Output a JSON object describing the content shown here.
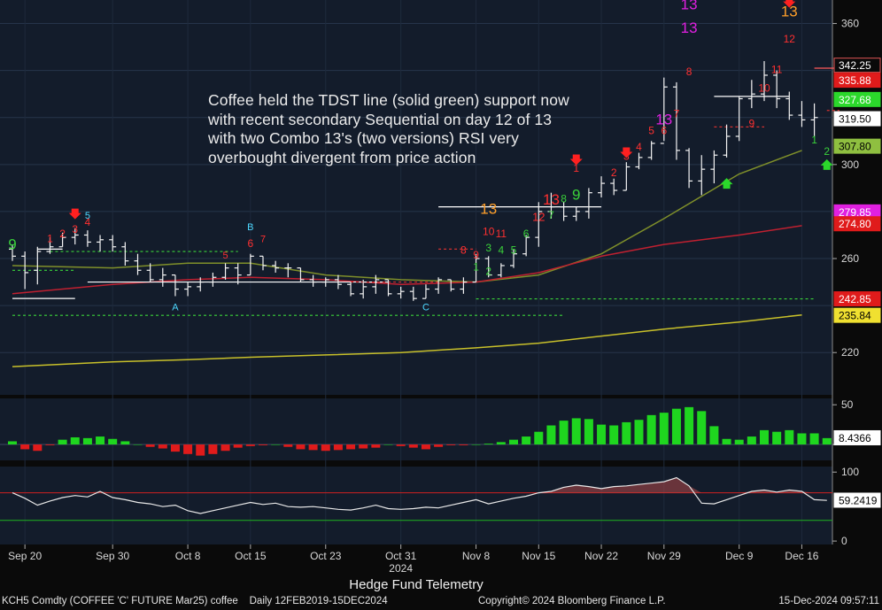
{
  "chart_data": {
    "type": "ohlc-multi-panel",
    "instrument": "KCH5 Comdty (COFFEE 'C' FUTURE Mar25) coffee",
    "period": "Daily 12FEB2019-15DEC2024",
    "title": "Hedge Fund Telemetry",
    "copyright": "Copyright© 2024 Bloomberg Finance L.P.",
    "timestamp": "15-Dec-2024 09:57:11",
    "year_label": "2024",
    "x_ticks": [
      "Sep 20",
      "Sep 30",
      "Oct 8",
      "Oct 15",
      "Oct 23",
      "Oct 31",
      "Nov 8",
      "Nov 15",
      "Nov 22",
      "Nov 29",
      "Dec 9",
      "Dec 16"
    ],
    "x_tick_index": [
      1,
      8,
      14,
      19,
      25,
      31,
      37,
      42,
      47,
      52,
      58,
      63
    ],
    "price_axis": {
      "ylim": [
        202,
        370
      ],
      "ticks": [
        220,
        260,
        300,
        360
      ]
    },
    "price_bars": [
      {
        "o": 264,
        "h": 266,
        "l": 259,
        "c": 261
      },
      {
        "o": 261,
        "h": 263,
        "l": 247,
        "c": 254
      },
      {
        "o": 255,
        "h": 265,
        "l": 249,
        "c": 263
      },
      {
        "o": 263,
        "h": 269,
        "l": 262,
        "c": 265
      },
      {
        "o": 265,
        "h": 271,
        "l": 265,
        "c": 269
      },
      {
        "o": 269,
        "h": 273,
        "l": 266,
        "c": 270
      },
      {
        "o": 270,
        "h": 272,
        "l": 265,
        "c": 267
      },
      {
        "o": 267,
        "h": 270,
        "l": 263,
        "c": 268
      },
      {
        "o": 268,
        "h": 270,
        "l": 263,
        "c": 265
      },
      {
        "o": 265,
        "h": 267,
        "l": 257,
        "c": 259
      },
      {
        "o": 259,
        "h": 262,
        "l": 253,
        "c": 255
      },
      {
        "o": 255,
        "h": 258,
        "l": 250,
        "c": 251
      },
      {
        "o": 251,
        "h": 256,
        "l": 248,
        "c": 253
      },
      {
        "o": 253,
        "h": 253,
        "l": 244,
        "c": 247
      },
      {
        "o": 247,
        "h": 250,
        "l": 244,
        "c": 248
      },
      {
        "o": 248,
        "h": 252,
        "l": 246,
        "c": 250
      },
      {
        "o": 250,
        "h": 254,
        "l": 248,
        "c": 252
      },
      {
        "o": 252,
        "h": 258,
        "l": 251,
        "c": 256
      },
      {
        "o": 256,
        "h": 258,
        "l": 249,
        "c": 253
      },
      {
        "o": 253,
        "h": 262,
        "l": 253,
        "c": 261
      },
      {
        "o": 261,
        "h": 261,
        "l": 255,
        "c": 257
      },
      {
        "o": 257,
        "h": 259,
        "l": 254,
        "c": 256
      },
      {
        "o": 256,
        "h": 258,
        "l": 252,
        "c": 256
      },
      {
        "o": 256,
        "h": 256,
        "l": 250,
        "c": 251
      },
      {
        "o": 251,
        "h": 253,
        "l": 248,
        "c": 250
      },
      {
        "o": 250,
        "h": 252,
        "l": 248,
        "c": 251
      },
      {
        "o": 251,
        "h": 253,
        "l": 247,
        "c": 249
      },
      {
        "o": 249,
        "h": 250,
        "l": 244,
        "c": 245
      },
      {
        "o": 245,
        "h": 251,
        "l": 243,
        "c": 248
      },
      {
        "o": 248,
        "h": 253,
        "l": 245,
        "c": 251
      },
      {
        "o": 251,
        "h": 251,
        "l": 244,
        "c": 245
      },
      {
        "o": 245,
        "h": 248,
        "l": 243,
        "c": 246
      },
      {
        "o": 246,
        "h": 248,
        "l": 242,
        "c": 243
      },
      {
        "o": 243,
        "h": 249,
        "l": 243,
        "c": 247
      },
      {
        "o": 247,
        "h": 252,
        "l": 245,
        "c": 251
      },
      {
        "o": 251,
        "h": 251,
        "l": 246,
        "c": 247
      },
      {
        "o": 247,
        "h": 252,
        "l": 245,
        "c": 250
      },
      {
        "o": 250,
        "h": 262,
        "l": 250,
        "c": 260
      },
      {
        "o": 260,
        "h": 261,
        "l": 252,
        "c": 253
      },
      {
        "o": 253,
        "h": 258,
        "l": 252,
        "c": 257
      },
      {
        "o": 257,
        "h": 264,
        "l": 256,
        "c": 262
      },
      {
        "o": 262,
        "h": 270,
        "l": 261,
        "c": 269
      },
      {
        "o": 269,
        "h": 284,
        "l": 265,
        "c": 280
      },
      {
        "o": 280,
        "h": 288,
        "l": 277,
        "c": 282
      },
      {
        "o": 282,
        "h": 284,
        "l": 276,
        "c": 278
      },
      {
        "o": 278,
        "h": 282,
        "l": 276,
        "c": 280
      },
      {
        "o": 280,
        "h": 290,
        "l": 277,
        "c": 288
      },
      {
        "o": 288,
        "h": 295,
        "l": 286,
        "c": 292
      },
      {
        "o": 292,
        "h": 294,
        "l": 287,
        "c": 289
      },
      {
        "o": 289,
        "h": 301,
        "l": 289,
        "c": 299
      },
      {
        "o": 299,
        "h": 305,
        "l": 298,
        "c": 303
      },
      {
        "o": 303,
        "h": 310,
        "l": 302,
        "c": 309
      },
      {
        "o": 309,
        "h": 337,
        "l": 310,
        "c": 333
      },
      {
        "o": 333,
        "h": 335,
        "l": 302,
        "c": 306
      },
      {
        "o": 306,
        "h": 307,
        "l": 290,
        "c": 293
      },
      {
        "o": 293,
        "h": 304,
        "l": 287,
        "c": 298
      },
      {
        "o": 298,
        "h": 306,
        "l": 292,
        "c": 304
      },
      {
        "o": 304,
        "h": 317,
        "l": 303,
        "c": 312
      },
      {
        "o": 312,
        "h": 329,
        "l": 310,
        "c": 328
      },
      {
        "o": 328,
        "h": 336,
        "l": 324,
        "c": 330
      },
      {
        "o": 330,
        "h": 344,
        "l": 327,
        "c": 338
      },
      {
        "o": 338,
        "h": 340,
        "l": 324,
        "c": 328
      },
      {
        "o": 328,
        "h": 331,
        "l": 319,
        "c": 321
      },
      {
        "o": 321,
        "h": 327,
        "l": 316,
        "c": 319
      },
      {
        "o": 319,
        "h": 326,
        "l": 312,
        "c": 320
      }
    ],
    "overlays": [
      {
        "name": "olive-ma",
        "color": "#7f8f2a",
        "points": [
          [
            0,
            257
          ],
          [
            8,
            256
          ],
          [
            14,
            258
          ],
          [
            19,
            258
          ],
          [
            25,
            253
          ],
          [
            31,
            251
          ],
          [
            37,
            250
          ],
          [
            42,
            253
          ],
          [
            47,
            262
          ],
          [
            52,
            277
          ],
          [
            58,
            296
          ],
          [
            63,
            306
          ]
        ]
      },
      {
        "name": "red-ma",
        "color": "#c02030",
        "points": [
          [
            0,
            245
          ],
          [
            8,
            249
          ],
          [
            14,
            251
          ],
          [
            19,
            252
          ],
          [
            25,
            251
          ],
          [
            31,
            249
          ],
          [
            37,
            250
          ],
          [
            42,
            254
          ],
          [
            47,
            261
          ],
          [
            52,
            266
          ],
          [
            58,
            270
          ],
          [
            63,
            274
          ]
        ]
      },
      {
        "name": "yellow-ma",
        "color": "#c8c02a",
        "points": [
          [
            0,
            214
          ],
          [
            8,
            216
          ],
          [
            14,
            217
          ],
          [
            19,
            218
          ],
          [
            25,
            219
          ],
          [
            31,
            220
          ],
          [
            37,
            222
          ],
          [
            42,
            224
          ],
          [
            47,
            227
          ],
          [
            52,
            230
          ],
          [
            58,
            233
          ],
          [
            63,
            236
          ]
        ]
      }
    ],
    "hlines": [
      {
        "y": 235.84,
        "x1": 0,
        "x2": 44,
        "color": "#3ad23a",
        "dash": true
      },
      {
        "y": 242.85,
        "x1": 37,
        "x2": 64,
        "color": "#3ad23a",
        "dash": true
      },
      {
        "y": 263,
        "x1": 3,
        "x2": 18,
        "color": "#3ad23a",
        "dash": true
      },
      {
        "y": 255,
        "x1": 0,
        "x2": 5,
        "color": "#3ad23a",
        "dash": true
      },
      {
        "y": 243,
        "x1": 0,
        "x2": 5,
        "color": "#ffffff"
      },
      {
        "y": 264,
        "x1": 2,
        "x2": 4,
        "color": "#ffffff"
      },
      {
        "y": 250,
        "x1": 6,
        "x2": 30,
        "color": "#ffffff"
      },
      {
        "y": 282,
        "x1": 34,
        "x2": 47,
        "color": "#ffffff"
      },
      {
        "y": 329,
        "x1": 56,
        "x2": 62,
        "color": "#ffffff"
      },
      {
        "y": 316,
        "x1": 56,
        "x2": 60,
        "color": "#d33030",
        "dash": true
      },
      {
        "y": 264,
        "x1": 34,
        "x2": 37,
        "color": "#d33030",
        "dash": true
      },
      {
        "y": 250,
        "x1": 27,
        "x2": 34,
        "color": "#d33030",
        "dash": true
      },
      {
        "y": 341,
        "x1": 64,
        "x2": 66,
        "color": "#ff5a5a"
      },
      {
        "y": 323,
        "x1": 65,
        "x2": 66,
        "color": "#d33030",
        "dash": true
      }
    ],
    "sequential_labels": [
      {
        "i": 0,
        "y": 264,
        "t": "9",
        "c": "#3ad23a",
        "s": 17
      },
      {
        "i": 3,
        "y": 267,
        "t": "1",
        "c": "#ff3030",
        "s": 12
      },
      {
        "i": 4,
        "y": 269,
        "t": "2",
        "c": "#ff3030",
        "s": 12
      },
      {
        "i": 5,
        "y": 271,
        "t": "3",
        "c": "#ff3030",
        "s": 12
      },
      {
        "i": 6,
        "y": 274,
        "t": "4",
        "c": "#ff3030",
        "s": 12
      },
      {
        "i": 6,
        "y": 277,
        "t": "5",
        "c": "#4dd8ff",
        "s": 11
      },
      {
        "i": 13,
        "y": 238,
        "t": "A",
        "c": "#4dd8ff",
        "s": 11
      },
      {
        "i": 17,
        "y": 260,
        "t": "5",
        "c": "#ff3030",
        "s": 11
      },
      {
        "i": 19,
        "y": 265,
        "t": "6",
        "c": "#ff3030",
        "s": 12
      },
      {
        "i": 19,
        "y": 272,
        "t": "B",
        "c": "#4dd8ff",
        "s": 11
      },
      {
        "i": 20,
        "y": 267,
        "t": "7",
        "c": "#ff3030",
        "s": 11
      },
      {
        "i": 33,
        "y": 238,
        "t": "C",
        "c": "#4dd8ff",
        "s": 11
      },
      {
        "i": 36,
        "y": 262,
        "t": "8",
        "c": "#ff3030",
        "s": 12
      },
      {
        "i": 37,
        "y": 255,
        "t": "1",
        "c": "#3ad23a",
        "s": 12
      },
      {
        "i": 37,
        "y": 260,
        "t": "9",
        "c": "#ff3030",
        "s": 12
      },
      {
        "i": 38,
        "y": 253,
        "t": "2",
        "c": "#3ad23a",
        "s": 12
      },
      {
        "i": 38,
        "y": 263,
        "t": "3",
        "c": "#3ad23a",
        "s": 12
      },
      {
        "i": 39,
        "y": 262,
        "t": "4",
        "c": "#3ad23a",
        "s": 12
      },
      {
        "i": 38,
        "y": 270,
        "t": "10",
        "c": "#ff3030",
        "s": 12
      },
      {
        "i": 39,
        "y": 269,
        "t": "11",
        "c": "#ff3030",
        "s": 12
      },
      {
        "i": 40,
        "y": 262,
        "t": "5",
        "c": "#3ad23a",
        "s": 12
      },
      {
        "i": 38,
        "y": 279,
        "t": "13",
        "c": "#ff9f2a",
        "s": 17
      },
      {
        "i": 41,
        "y": 269,
        "t": "6",
        "c": "#3ad23a",
        "s": 12
      },
      {
        "i": 42,
        "y": 276,
        "t": "12",
        "c": "#ff3030",
        "s": 13
      },
      {
        "i": 43,
        "y": 277,
        "t": "7",
        "c": "#3ad23a",
        "s": 12
      },
      {
        "i": 43,
        "y": 283,
        "t": "13",
        "c": "#ff3030",
        "s": 17
      },
      {
        "i": 44,
        "y": 284,
        "t": "8",
        "c": "#3ad23a",
        "s": 12
      },
      {
        "i": 45,
        "y": 285,
        "t": "9",
        "c": "#3ad23a",
        "s": 17
      },
      {
        "i": 45,
        "y": 297,
        "t": "1",
        "c": "#ff3030",
        "s": 12
      },
      {
        "i": 48,
        "y": 295,
        "t": "2",
        "c": "#ff3030",
        "s": 12
      },
      {
        "i": 49,
        "y": 302,
        "t": "3",
        "c": "#ff3030",
        "s": 12
      },
      {
        "i": 50,
        "y": 306,
        "t": "4",
        "c": "#ff3030",
        "s": 12
      },
      {
        "i": 51,
        "y": 313,
        "t": "5",
        "c": "#ff3030",
        "s": 12
      },
      {
        "i": 52,
        "y": 313,
        "t": "6",
        "c": "#ff3030",
        "s": 12
      },
      {
        "i": 53,
        "y": 320,
        "t": "7",
        "c": "#ff3030",
        "s": 12
      },
      {
        "i": 54,
        "y": 338,
        "t": "8",
        "c": "#ff3030",
        "s": 12
      },
      {
        "i": 52,
        "y": 317,
        "t": "13",
        "c": "#e020e0",
        "s": 17
      },
      {
        "i": 54,
        "y": 356,
        "t": "13",
        "c": "#e020e0",
        "s": 17
      },
      {
        "i": 54,
        "y": 366,
        "t": "13",
        "c": "#e020e0",
        "s": 17
      },
      {
        "i": 59,
        "y": 316,
        "t": "9",
        "c": "#ff3030",
        "s": 12
      },
      {
        "i": 60,
        "y": 331,
        "t": "10",
        "c": "#ff3030",
        "s": 12
      },
      {
        "i": 61,
        "y": 339,
        "t": "11",
        "c": "#ff3030",
        "s": 12
      },
      {
        "i": 62,
        "y": 352,
        "t": "12",
        "c": "#ff3030",
        "s": 12
      },
      {
        "i": 62,
        "y": 363,
        "t": "13",
        "c": "#ff9f2a",
        "s": 17
      },
      {
        "i": 64,
        "y": 309,
        "t": "1",
        "c": "#3ad23a",
        "s": 12
      },
      {
        "i": 65,
        "y": 304,
        "t": "2",
        "c": "#3ad23a",
        "s": 12
      }
    ],
    "red_down_arrows": [
      [
        5,
        279
      ],
      [
        45,
        302
      ],
      [
        49,
        305
      ],
      [
        62,
        369
      ]
    ],
    "green_up_arrows": [
      [
        57,
        292
      ],
      [
        65,
        300
      ]
    ],
    "price_labels": [
      {
        "value": "342.25",
        "bg": "#0a0a0a",
        "fg": "#ffffff",
        "border": "#e05555",
        "y": 342.25
      },
      {
        "value": "335.88",
        "bg": "#e01b1b",
        "fg": "#ffffff",
        "border": "#e01b1b",
        "y": 335.88
      },
      {
        "value": "327.68",
        "bg": "#2bd82b",
        "fg": "#ffffff",
        "border": "#2bd82b",
        "y": 327.68
      },
      {
        "value": "319.50",
        "bg": "#ffffff",
        "fg": "#000000",
        "border": "#ffffff",
        "y": 319.5
      },
      {
        "value": "307.80",
        "bg": "#8fbf40",
        "fg": "#000000",
        "border": "#8fbf40",
        "y": 307.8
      },
      {
        "value": "279.85",
        "bg": "#e020e0",
        "fg": "#ffffff",
        "border": "#e020e0",
        "y": 279.85
      },
      {
        "value": "274.80",
        "bg": "#e01b1b",
        "fg": "#ffffff",
        "border": "#e01b1b",
        "y": 274.8
      },
      {
        "value": "242.85",
        "bg": "#e01b1b",
        "fg": "#ffffff",
        "border": "#e01b1b",
        "y": 242.85
      },
      {
        "value": "235.84",
        "bg": "#f0e030",
        "fg": "#000000",
        "border": "#f0e030",
        "y": 235.84
      }
    ],
    "histogram": {
      "ylim": [
        -20,
        58
      ],
      "ticks": [
        50,
        0
      ],
      "last_label": "8.4366",
      "values": [
        4,
        -6,
        -8,
        -1,
        6,
        9,
        8,
        10,
        7,
        4,
        0,
        -3,
        -5,
        -9,
        -12,
        -14,
        -12,
        -8,
        -4,
        -2,
        -1,
        0,
        -3,
        -6,
        -7,
        -8,
        -7,
        -6,
        -5,
        -4,
        0,
        -2,
        -4,
        -6,
        -3,
        -1,
        -1,
        0,
        1,
        3,
        6,
        10,
        16,
        24,
        30,
        33,
        32,
        25,
        24,
        28,
        31,
        37,
        40,
        45,
        47,
        42,
        23,
        7,
        6,
        10,
        18,
        16,
        18,
        14,
        14,
        8
      ]
    },
    "rsi": {
      "ylim": [
        -5,
        108
      ],
      "ticks": [
        100,
        0
      ],
      "last_label": "59.2419",
      "upper_line": 70,
      "lower_line": 30,
      "values": [
        70,
        62,
        52,
        58,
        63,
        66,
        64,
        72,
        63,
        60,
        56,
        54,
        50,
        52,
        44,
        40,
        44,
        48,
        52,
        56,
        53,
        55,
        50,
        49,
        50,
        48,
        46,
        45,
        48,
        52,
        47,
        46,
        47,
        49,
        48,
        52,
        56,
        60,
        54,
        58,
        62,
        65,
        70,
        72,
        78,
        81,
        79,
        76,
        79,
        80,
        82,
        84,
        86,
        92,
        80,
        55,
        54,
        60,
        66,
        72,
        74,
        71,
        74,
        72,
        60,
        59
      ]
    }
  }
}
